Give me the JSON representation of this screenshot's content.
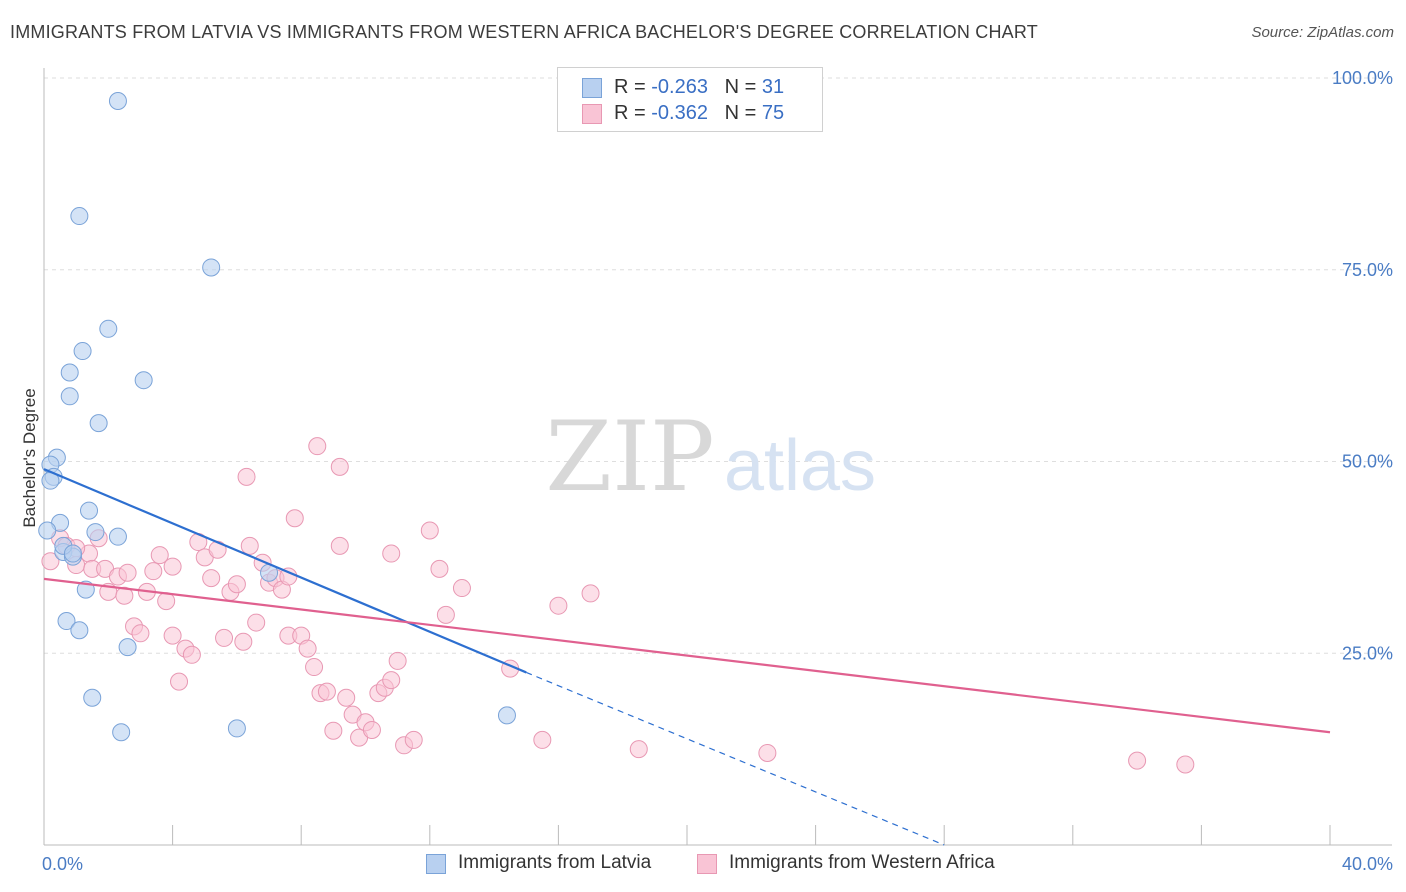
{
  "header": {
    "title": "IMMIGRANTS FROM LATVIA VS IMMIGRANTS FROM WESTERN AFRICA BACHELOR'S DEGREE CORRELATION CHART",
    "source": "Source: ZipAtlas.com"
  },
  "watermark": {
    "zip": "ZIP",
    "atlas": "atlas"
  },
  "legend": {
    "series1": {
      "r_label": "R = ",
      "r_value": "-0.263",
      "n_label": "N = ",
      "n_value": "31"
    },
    "series2": {
      "r_label": "R = ",
      "r_value": "-0.362",
      "n_label": "N = ",
      "n_value": "75"
    }
  },
  "colors": {
    "latvia_fill": "#b8d0f0",
    "latvia_stroke": "#7aa3d8",
    "latvia_line": "#2d6fd0",
    "wafrica_fill": "#f9c4d5",
    "wafrica_stroke": "#e898b3",
    "wafrica_line": "#e0608f",
    "tick": "#4a7cc4"
  },
  "chart_data": {
    "type": "scatter",
    "title": "IMMIGRANTS FROM LATVIA VS IMMIGRANTS FROM WESTERN AFRICA BACHELOR'S DEGREE CORRELATION CHART",
    "xlabel": "",
    "ylabel": "Bachelor's Degree",
    "xlim": [
      0,
      40
    ],
    "ylim": [
      0,
      100
    ],
    "x_tick_labels": [
      "0.0%",
      "40.0%"
    ],
    "y_tick_labels": [
      "100.0%",
      "75.0%",
      "50.0%",
      "25.0%"
    ],
    "y_tick_values": [
      100,
      75,
      50,
      25
    ],
    "grid": true,
    "legend_position": "top-center",
    "series": [
      {
        "name": "Immigrants from Latvia",
        "x": [
          2.3,
          1.1,
          5.2,
          2.0,
          1.2,
          0.8,
          0.8,
          3.1,
          1.7,
          0.4,
          0.2,
          0.3,
          1.4,
          0.5,
          1.6,
          0.1,
          0.6,
          0.9,
          1.3,
          2.3,
          7.0,
          0.7,
          1.1,
          2.6,
          1.5,
          2.4,
          6.0,
          14.4,
          0.2,
          0.6,
          0.9
        ],
        "y": [
          97,
          82,
          75.3,
          67.3,
          64.4,
          61.6,
          58.5,
          60.6,
          55,
          50.5,
          49.6,
          48,
          43.6,
          42,
          40.8,
          41,
          38.2,
          37.6,
          33.3,
          40.2,
          35.5,
          29.2,
          28,
          25.8,
          19.2,
          14.7,
          15.2,
          16.9,
          47.5,
          39,
          38
        ],
        "trend": {
          "x": [
            0,
            15
          ],
          "y": [
            49,
            22.5
          ],
          "dashed_to": [
            28,
            0
          ]
        }
      },
      {
        "name": "Immigrants from Western Africa",
        "x": [
          0.2,
          0.5,
          0.7,
          1.0,
          1.4,
          1.5,
          1.7,
          1.9,
          2.0,
          2.3,
          2.5,
          2.8,
          3.0,
          3.2,
          3.4,
          3.6,
          3.8,
          4.0,
          4.2,
          4.4,
          4.6,
          4.8,
          5.0,
          5.2,
          5.4,
          5.6,
          5.8,
          6.0,
          6.2,
          6.4,
          6.6,
          6.8,
          7.0,
          7.2,
          7.4,
          7.6,
          7.8,
          8.0,
          8.2,
          8.4,
          8.6,
          8.8,
          9.0,
          9.2,
          9.4,
          9.6,
          9.8,
          10.0,
          10.2,
          10.4,
          10.6,
          10.8,
          11.0,
          11.2,
          11.5,
          12.0,
          12.5,
          13.0,
          14.5,
          15.5,
          16.0,
          17.0,
          18.5,
          22.5,
          34.0,
          35.5,
          8.5,
          10.8,
          12.3,
          6.3,
          4.0,
          2.6,
          1.0,
          7.6,
          9.2
        ],
        "y": [
          37,
          40,
          39,
          36.5,
          38,
          36,
          40,
          36,
          33,
          35,
          32.5,
          28.5,
          27.6,
          33,
          35.7,
          37.8,
          31.8,
          27.3,
          21.3,
          25.6,
          24.8,
          39.5,
          37.5,
          34.8,
          38.5,
          27,
          33,
          34,
          26.5,
          39,
          29,
          36.8,
          34.2,
          34.8,
          33.3,
          27.3,
          42.6,
          27.3,
          25.6,
          23.2,
          19.8,
          20,
          14.9,
          49.3,
          19.2,
          17,
          14,
          16,
          15,
          19.8,
          20.5,
          21.5,
          24,
          13,
          13.7,
          41,
          30,
          33.5,
          23,
          13.7,
          31.2,
          32.8,
          12.5,
          12,
          11,
          10.5,
          52,
          38,
          36,
          48,
          36.3,
          35.5,
          38.7,
          35,
          39
        ],
        "trend": {
          "x": [
            0,
            40
          ],
          "y": [
            34.7,
            14.7
          ]
        }
      }
    ]
  },
  "bottom_legend": {
    "latvia": "Immigrants from Latvia",
    "wafrica": "Immigrants from Western Africa"
  }
}
